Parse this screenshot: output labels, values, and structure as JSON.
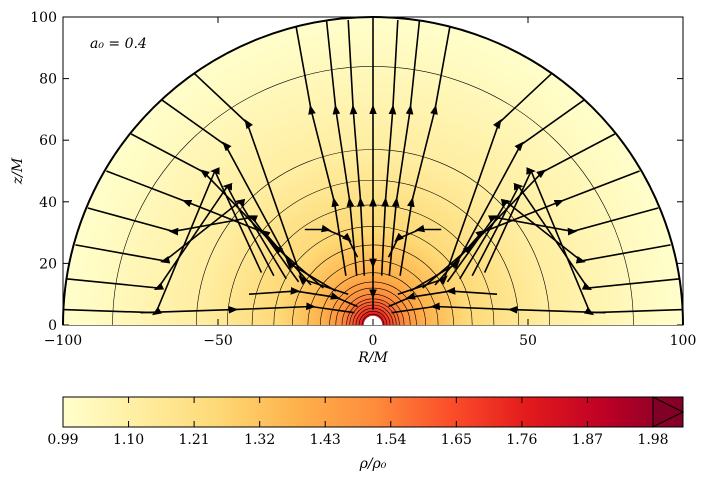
{
  "chart_data": {
    "type": "heatmap",
    "title": "",
    "annotation": "a₀ = 0.4",
    "xlabel": "R/M",
    "ylabel": "z/M",
    "xlim": [
      -100,
      100
    ],
    "ylim": [
      0,
      100
    ],
    "x_ticks": [
      -100,
      -50,
      0,
      50,
      100
    ],
    "x_tick_labels": [
      "−100",
      "−50",
      "0",
      "50",
      "100"
    ],
    "y_ticks": [
      0,
      20,
      40,
      60,
      80,
      100
    ],
    "y_tick_labels": [
      "0",
      "20",
      "40",
      "60",
      "80",
      "100"
    ],
    "domain_radius": 100,
    "excised_radius": 3,
    "density_contour_radii": [
      3.5,
      4.5,
      5.5,
      6.5,
      7.5,
      8.5,
      10,
      12,
      14,
      17,
      21,
      26,
      32,
      39,
      47,
      57,
      84
    ],
    "colorbar": {
      "label": "ρ/ρ₀",
      "range": [
        0.99,
        1.98
      ],
      "extend": "max",
      "ticks": [
        0.99,
        1.1,
        1.21,
        1.32,
        1.43,
        1.54,
        1.65,
        1.76,
        1.87,
        1.98
      ],
      "tick_labels": [
        "0.99",
        "1.10",
        "1.21",
        "1.32",
        "1.43",
        "1.54",
        "1.65",
        "1.76",
        "1.87",
        "1.98"
      ],
      "colors": [
        "#ffffcc",
        "#ffeda0",
        "#fed976",
        "#feb24c",
        "#fd8d3c",
        "#fc4e2a",
        "#e31a1c",
        "#bd0026",
        "#800026"
      ]
    },
    "streamlines_depicted": "velocity field lines with arrows",
    "grid": false
  }
}
